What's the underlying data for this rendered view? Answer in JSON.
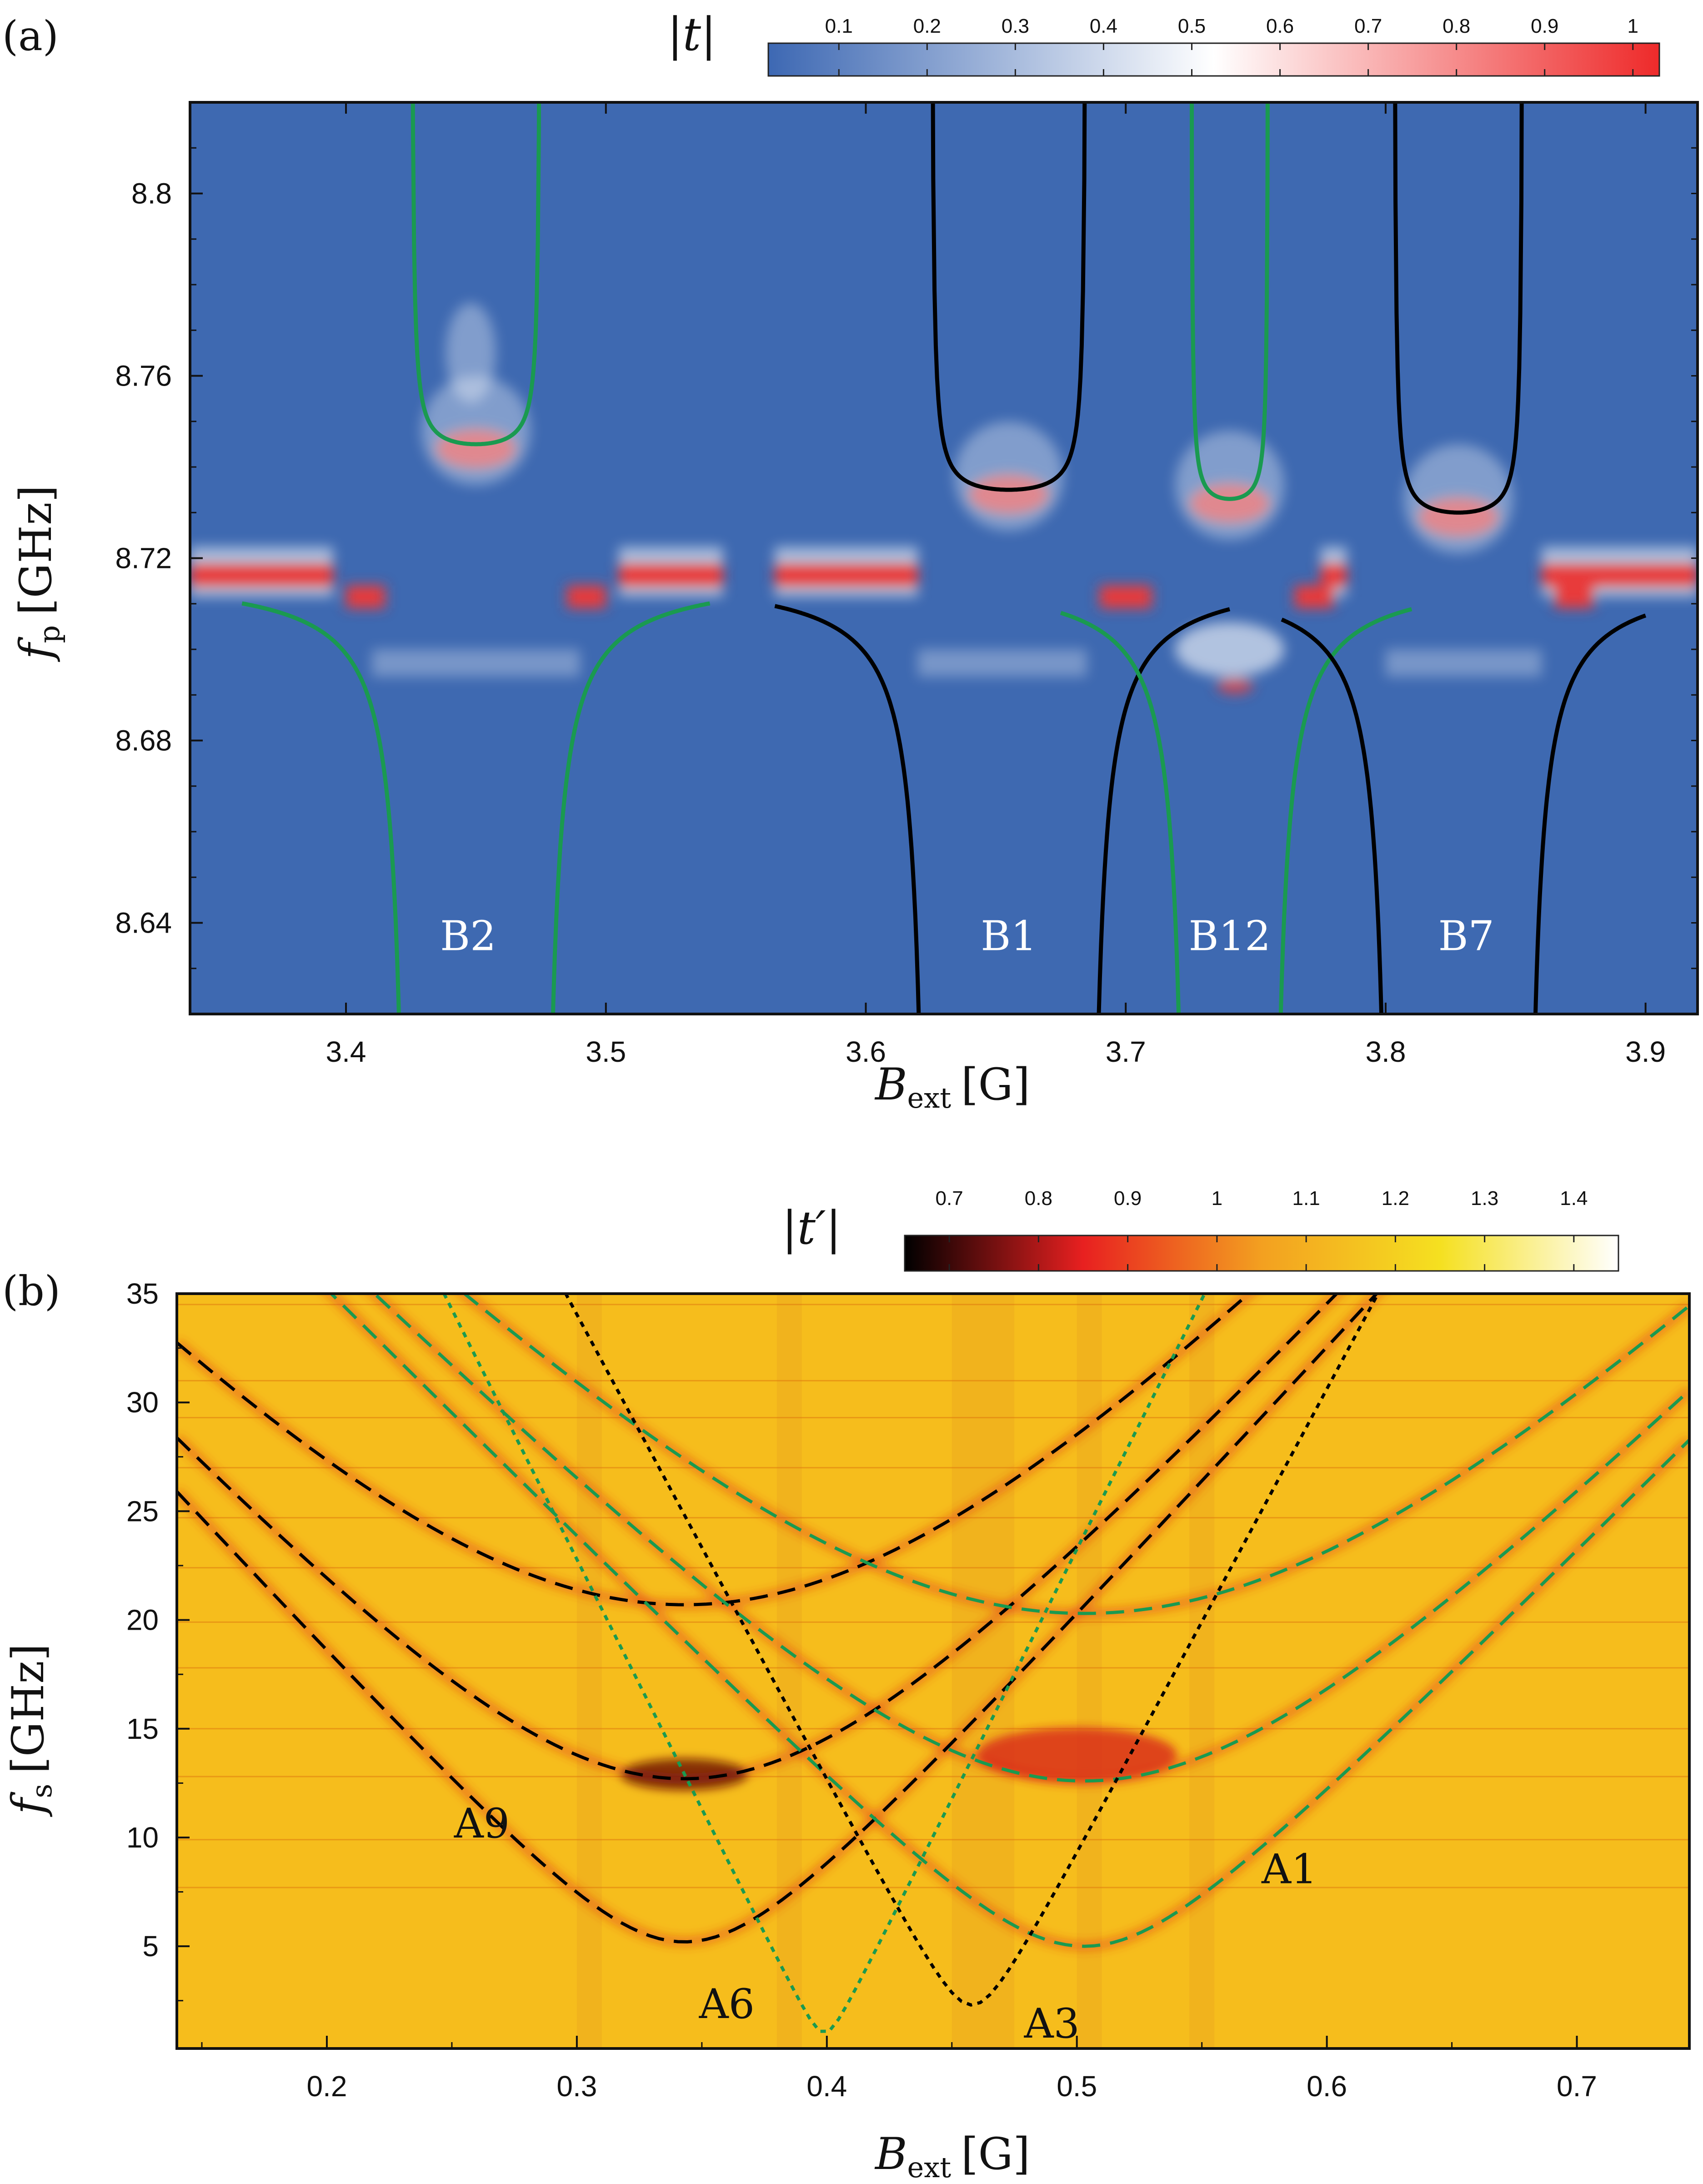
{
  "chart_data": [
    {
      "panel": "(a)",
      "type": "heatmap",
      "xlabel": "B_ext [G]",
      "xlabel_main": "B",
      "xlabel_sub": "ext",
      "xlabel_unit": "[G]",
      "ylabel_main": "f",
      "ylabel_sub": "p",
      "ylabel_unit": "[GHz]",
      "xlim": [
        3.34,
        3.92
      ],
      "ylim": [
        8.62,
        8.82
      ],
      "xticks": [
        3.4,
        3.5,
        3.6,
        3.7,
        3.8,
        3.9
      ],
      "xtick_labels": [
        "3.4",
        "3.5",
        "3.6",
        "3.7",
        "3.8",
        "3.9"
      ],
      "yticks": [
        8.64,
        8.68,
        8.72,
        8.76,
        8.8
      ],
      "ytick_labels": [
        "8.64",
        "8.68",
        "8.72",
        "8.76",
        "8.8"
      ],
      "colorbar": {
        "label": "|t|",
        "range": [
          0.02,
          1.03
        ],
        "ticks": [
          0.1,
          0.2,
          0.3,
          0.4,
          0.5,
          0.6,
          0.7,
          0.8,
          0.9,
          1
        ],
        "tick_labels": [
          "0.1",
          "0.2",
          "0.3",
          "0.4",
          "0.5",
          "0.6",
          "0.7",
          "0.8",
          "0.9",
          "1"
        ],
        "colors": [
          "#3d68b3",
          "#ffffff",
          "#ee2a2a"
        ]
      },
      "background_color": "#3e69b1",
      "resonator_f": 8.717,
      "annotations": [
        {
          "text": "B2",
          "x": 3.447,
          "y": 8.634
        },
        {
          "text": "B1",
          "x": 3.655,
          "y": 8.634
        },
        {
          "text": "B12",
          "x": 3.74,
          "y": 8.634
        },
        {
          "text": "B7",
          "x": 3.831,
          "y": 8.634
        }
      ],
      "anticrossings": [
        {
          "name": "B2",
          "center": 3.45,
          "color": "#1a9a50",
          "upper_min": 8.745,
          "left_branch": [
            3.36,
            3.425
          ],
          "right_branch": [
            3.475,
            3.54
          ]
        },
        {
          "name": "B1",
          "center": 3.655,
          "color": "#000000",
          "upper_min": 8.735,
          "left_branch": [
            3.565,
            3.625
          ],
          "right_branch": [
            3.685,
            3.74
          ]
        },
        {
          "name": "B12",
          "center": 3.74,
          "color": "#1a9a50",
          "upper_min": 8.733,
          "left_branch": [
            3.675,
            3.725
          ],
          "right_branch": [
            3.755,
            3.81
          ]
        },
        {
          "name": "B7",
          "center": 3.828,
          "color": "#000000",
          "upper_min": 8.73,
          "left_branch": [
            3.76,
            3.803
          ],
          "right_branch": [
            3.853,
            3.9
          ]
        }
      ]
    },
    {
      "panel": "(b)",
      "type": "heatmap",
      "xlabel_main": "B",
      "xlabel_sub": "ext",
      "xlabel_unit": "[G]",
      "ylabel_main": "f",
      "ylabel_sub": "s",
      "ylabel_unit": "[GHz]",
      "xlim": [
        0.14,
        0.745
      ],
      "ylim": [
        0.3,
        35
      ],
      "xticks": [
        0.2,
        0.3,
        0.4,
        0.5,
        0.6,
        0.7
      ],
      "xtick_labels": [
        "0.2",
        "0.3",
        "0.4",
        "0.5",
        "0.6",
        "0.7"
      ],
      "yticks": [
        5,
        10,
        15,
        20,
        25,
        30,
        35
      ],
      "ytick_labels": [
        "5",
        "10",
        "15",
        "20",
        "25",
        "30",
        "35"
      ],
      "colorbar": {
        "label": "|t′|",
        "range": [
          0.65,
          1.45
        ],
        "ticks": [
          0.7,
          0.8,
          0.9,
          1,
          1.1,
          1.2,
          1.3,
          1.4
        ],
        "tick_labels": [
          "0.7",
          "0.8",
          "0.9",
          "1",
          "1.1",
          "1.2",
          "1.3",
          "1.4"
        ],
        "colors": [
          "#000000",
          "#e82020",
          "#f3a020",
          "#f5e020",
          "#ffffff"
        ]
      },
      "background_color": "#f6bd1c",
      "annotations": [
        {
          "text": "A9",
          "x": 0.262,
          "y": 10.0
        },
        {
          "text": "A6",
          "x": 0.36,
          "y": 1.7
        },
        {
          "text": "A3",
          "x": 0.49,
          "y": 0.8
        },
        {
          "text": "A1",
          "x": 0.585,
          "y": 7.9
        }
      ],
      "transition_curves": [
        {
          "name": "A9-lower",
          "center": 0.343,
          "min_f": 5.2,
          "slope": 125,
          "color": "#000000",
          "style": "dashed"
        },
        {
          "name": "A9-upper",
          "center": 0.343,
          "min_f": 20.7,
          "slope": 125,
          "color": "#000000",
          "style": "dashed"
        },
        {
          "name": "A9-mid",
          "center": 0.343,
          "min_f": 12.7,
          "slope": 125,
          "color": "#000000",
          "style": "dashed"
        },
        {
          "name": "A1-lower",
          "center": 0.503,
          "min_f": 5.0,
          "slope": 115,
          "color": "#1a9a50",
          "style": "dashed"
        },
        {
          "name": "A1-mid",
          "center": 0.503,
          "min_f": 12.6,
          "slope": 115,
          "color": "#1a9a50",
          "style": "dashed"
        },
        {
          "name": "A1-upper",
          "center": 0.503,
          "min_f": 20.3,
          "slope": 115,
          "color": "#1a9a50",
          "style": "dashed"
        },
        {
          "name": "A6",
          "center": 0.399,
          "min_f": 1.0,
          "slope": 230,
          "color": "#1a9a50",
          "style": "dotted"
        },
        {
          "name": "A3",
          "center": 0.458,
          "min_f": 2.3,
          "slope": 215,
          "color": "#000000",
          "style": "dotted"
        }
      ],
      "horizontal_lines_f": [
        7.7,
        9.9,
        12.8,
        15.0,
        17.8,
        19.9,
        22.4,
        24.7,
        27.0,
        29.3,
        31.0,
        34.5
      ]
    }
  ],
  "panel_labels": [
    "(a)",
    "(b)"
  ]
}
